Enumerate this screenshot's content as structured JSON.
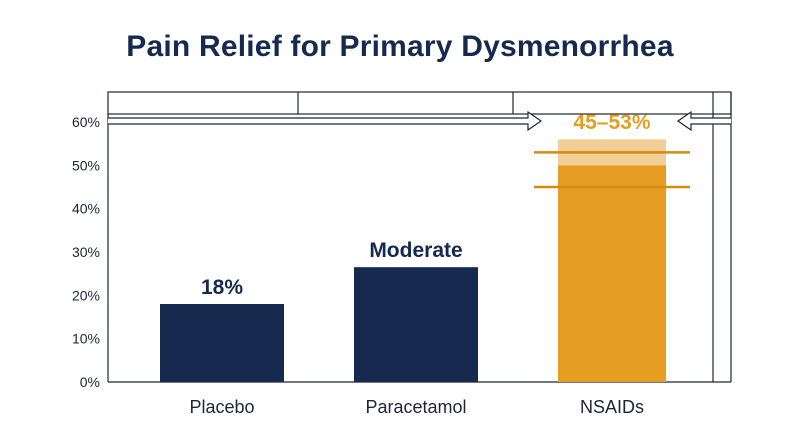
{
  "colors": {
    "navy": "#152a4e",
    "orange": "#e59e21",
    "orange_light": "#f3cf98",
    "orange_line": "#d68a10",
    "axis": "#1e2533"
  },
  "chart_data": {
    "type": "bar",
    "title": "Pain Relief for Primary Dysmenorrhea",
    "xlabel": "",
    "ylabel": "",
    "ylim": [
      0,
      60
    ],
    "yticks": [
      0,
      10,
      20,
      30,
      40,
      50,
      60
    ],
    "ytick_labels": [
      "0%",
      "10%",
      "20%",
      "30%",
      "40%",
      "50%",
      "60%"
    ],
    "categories": [
      "Placebo",
      "Paracetamol",
      "NSAIDs"
    ],
    "values": [
      18,
      26.5,
      50
    ],
    "range": {
      "category": "NSAIDs",
      "low": 45,
      "high": 53,
      "shaded_top": 56
    },
    "data_labels": [
      "18%",
      "Moderate",
      "45–53%"
    ],
    "grid": false,
    "legend": "none"
  }
}
